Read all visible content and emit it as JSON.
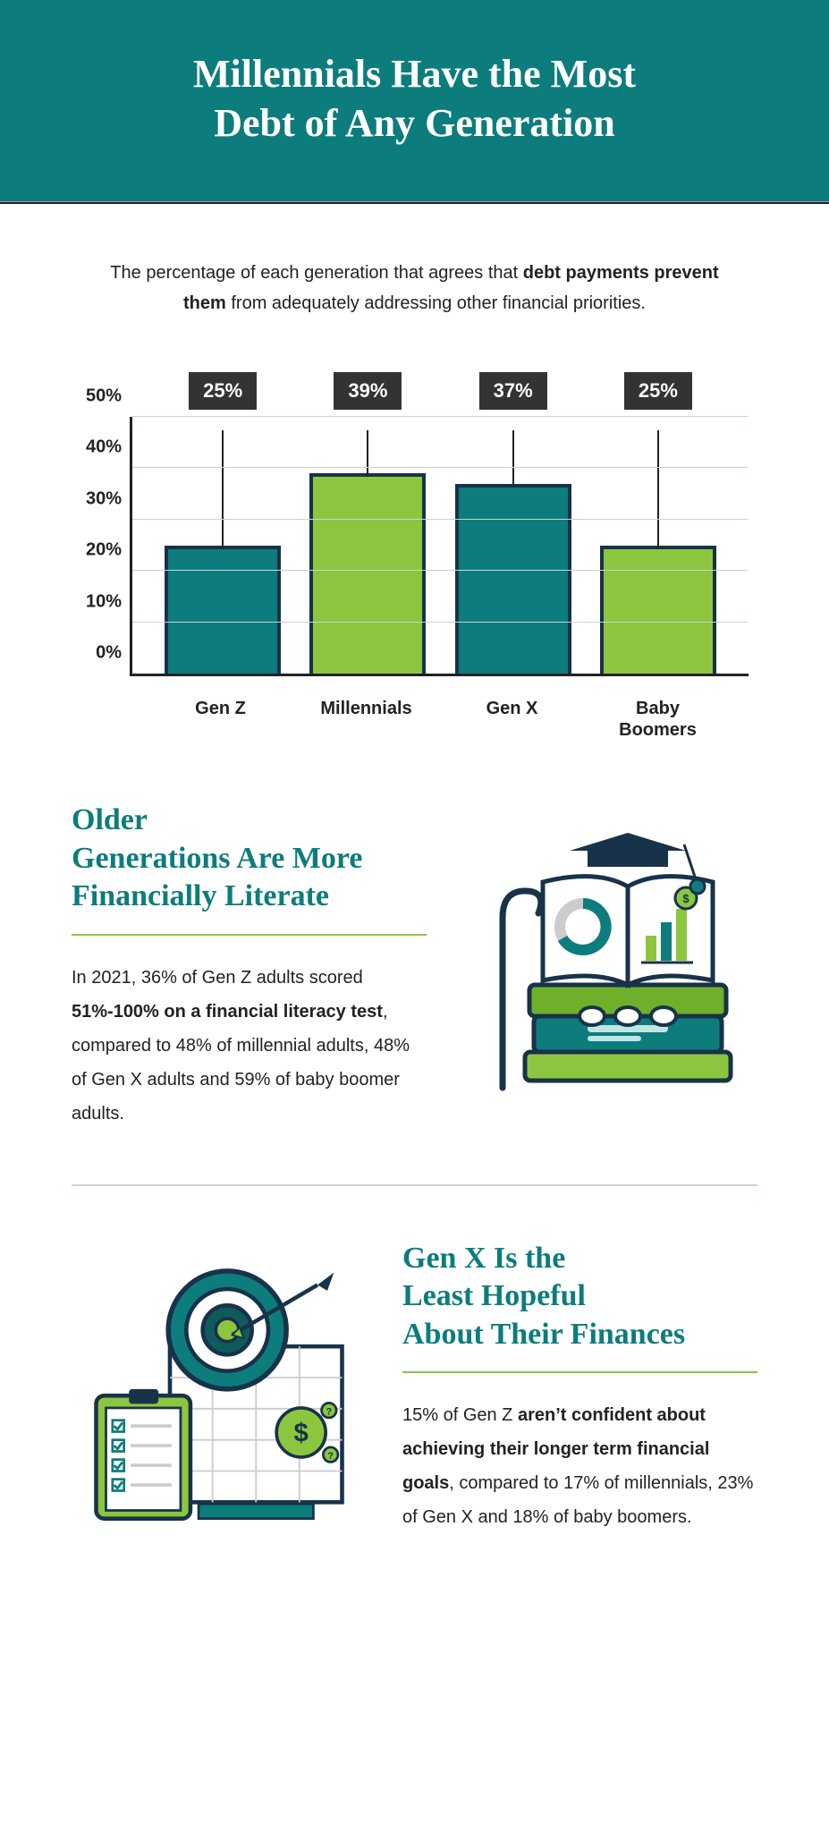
{
  "header": {
    "title_l1": "Millennials Have the Most",
    "title_l2": "Debt of Any Generation"
  },
  "subhead": {
    "pre": "The percentage of each generation that agrees that ",
    "bold": "debt payments prevent them",
    "post": " from adequately addressing other financial priorities."
  },
  "chart": {
    "type": "bar",
    "ylim": [
      0,
      50
    ],
    "ytick_step": 10,
    "yticks": [
      "0%",
      "10%",
      "20%",
      "30%",
      "40%",
      "50%"
    ],
    "grid_color": "#c8d4d4",
    "axis_color": "#222222",
    "bar_border": "#18324a",
    "callout_bg": "#333333",
    "callout_text": "#ffffff",
    "label_fontsize": 20,
    "bars": [
      {
        "label": "Gen Z",
        "value": 25,
        "display": "25%",
        "fill": "#0d7c7c"
      },
      {
        "label": "Millennials",
        "value": 39,
        "display": "39%",
        "fill": "#8cc63f"
      },
      {
        "label": "Gen X",
        "value": 37,
        "display": "37%",
        "fill": "#0d7c7c"
      },
      {
        "label": "Baby Boomers",
        "value": 25,
        "display": "25%",
        "fill": "#8cc63f"
      }
    ]
  },
  "section1": {
    "title_l1": "Older",
    "title_l2": "Generations Are More",
    "title_l3": "Financially Literate",
    "body_pre": "In 2021, 36% of Gen Z adults scored ",
    "body_bold": "51%-100% on a financial literacy test",
    "body_post": ", compared to 48% of millennial adults, 48% of Gen X adults and 59% of baby boomer adults."
  },
  "section2": {
    "title_l1": "Gen X Is the",
    "title_l2": "Least Hopeful",
    "title_l3": "About Their Finances",
    "body_pre": "15% of Gen Z ",
    "body_bold": "aren’t confident about achieving their longer term financial goals",
    "body_post": ", compared to 17% of millennials, 23% of Gen X and 18% of baby boomers."
  },
  "colors": {
    "brand": "#0d7c7c",
    "accent": "#8cc63f",
    "dark": "#18324a",
    "text": "#222222"
  }
}
